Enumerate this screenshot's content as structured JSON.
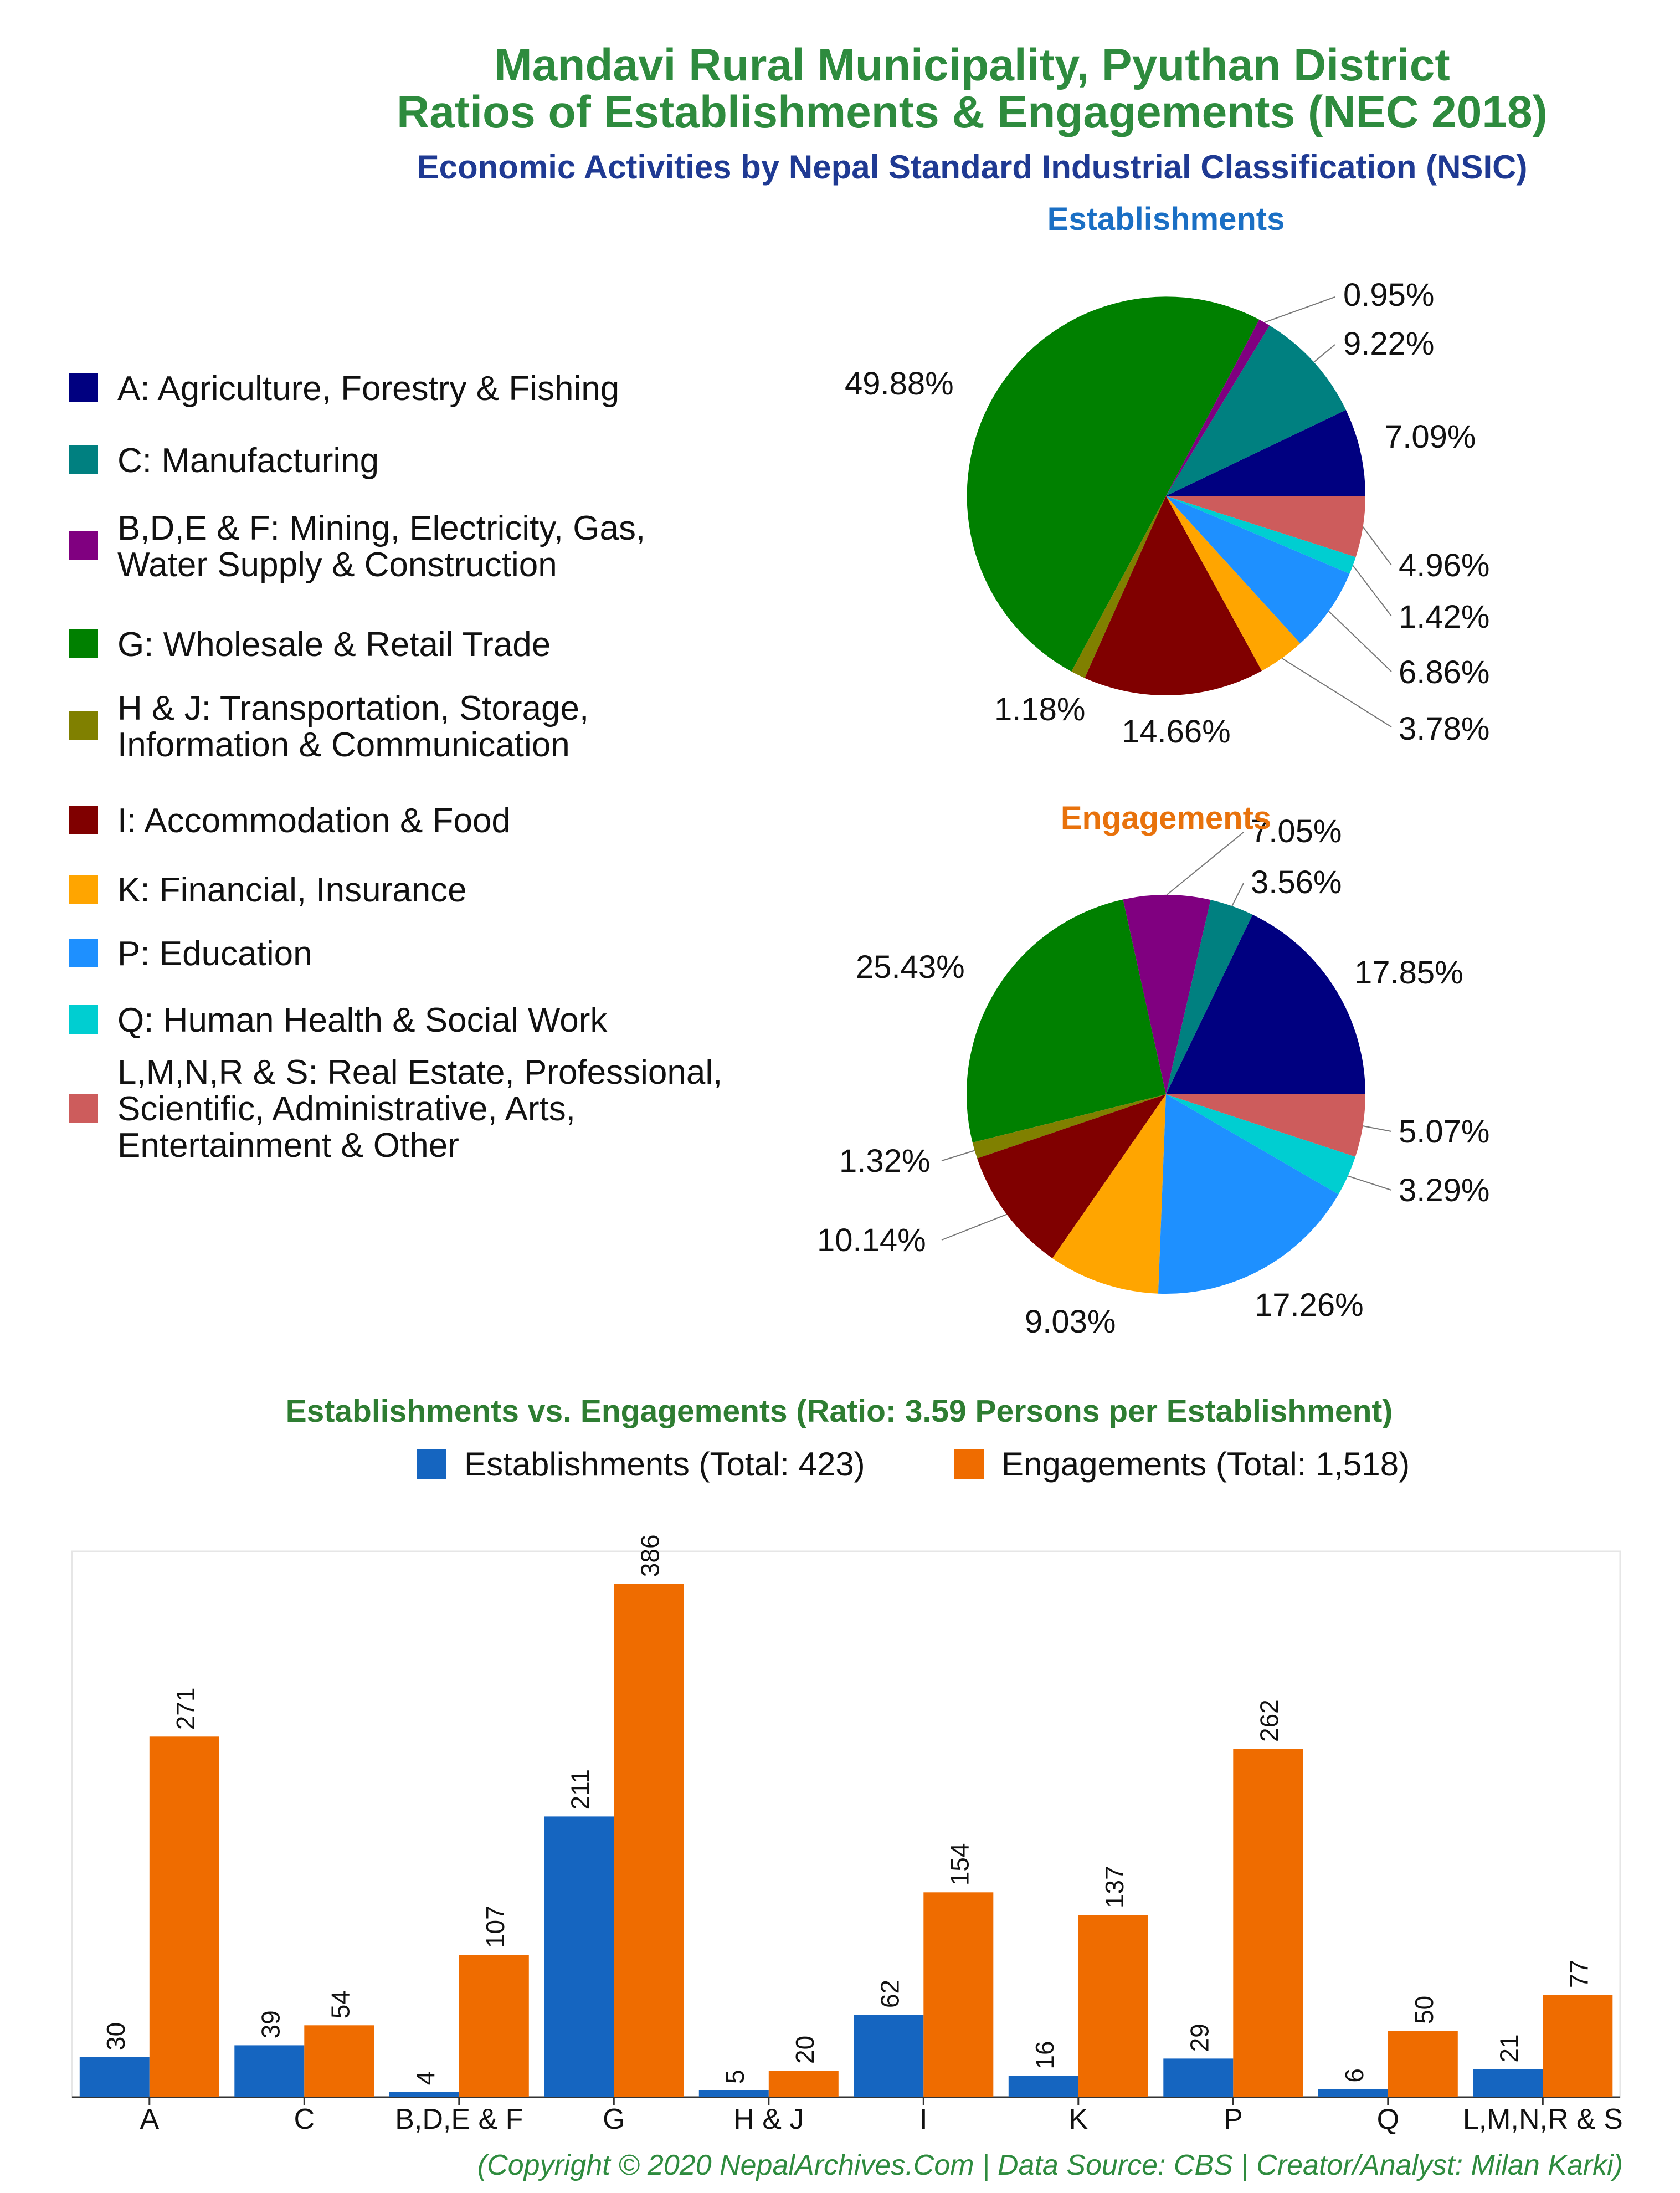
{
  "titles": {
    "line1": "Mandavi Rural Municipality, Pyuthan District",
    "line2": "Ratios of Establishments & Engagements (NEC 2018)",
    "subtitle": "Economic Activities by Nepal Standard Industrial Classification (NSIC)"
  },
  "colors": {
    "title": "#2e8b3e",
    "subtitle": "#1f3a93",
    "est_title": "#1a6fc4",
    "eng_title": "#e8720c",
    "bar_est": "#1565c0",
    "bar_eng": "#ef6c00",
    "bar_title": "#2e7d32",
    "copyright": "#2e8b3e"
  },
  "legend": [
    {
      "label": [
        "A: Agriculture, Forestry & Fishing"
      ],
      "color": "#000080"
    },
    {
      "label": [
        "C: Manufacturing"
      ],
      "color": "#008080"
    },
    {
      "label": [
        "B,D,E & F: Mining, Electricity, Gas,",
        "Water Supply & Construction"
      ],
      "color": "#800080"
    },
    {
      "label": [
        "G: Wholesale & Retail Trade"
      ],
      "color": "#008000"
    },
    {
      "label": [
        "H & J: Transportation, Storage,",
        "Information & Communication"
      ],
      "color": "#808000"
    },
    {
      "label": [
        "I: Accommodation & Food"
      ],
      "color": "#800000"
    },
    {
      "label": [
        "K: Financial, Insurance"
      ],
      "color": "#ffa500"
    },
    {
      "label": [
        "P: Education"
      ],
      "color": "#1e90ff"
    },
    {
      "label": [
        "Q: Human Health & Social Work"
      ],
      "color": "#00ced1"
    },
    {
      "label": [
        "L,M,N,R & S: Real Estate, Professional,",
        "Scientific, Administrative, Arts,",
        "Entertainment & Other"
      ],
      "color": "#cd5c5c"
    }
  ],
  "chart_data": [
    {
      "type": "pie",
      "title": "Establishments",
      "slices": [
        {
          "name": "A",
          "value": 7.09,
          "label": "7.09%",
          "color": "#000080"
        },
        {
          "name": "C",
          "value": 9.22,
          "label": "9.22%",
          "color": "#008080"
        },
        {
          "name": "B,D,E & F",
          "value": 0.95,
          "label": "0.95%",
          "color": "#800080"
        },
        {
          "name": "G",
          "value": 49.88,
          "label": "49.88%",
          "color": "#008000"
        },
        {
          "name": "H & J",
          "value": 1.18,
          "label": "1.18%",
          "color": "#808000"
        },
        {
          "name": "I",
          "value": 14.66,
          "label": "14.66%",
          "color": "#800000"
        },
        {
          "name": "K",
          "value": 3.78,
          "label": "3.78%",
          "color": "#ffa500"
        },
        {
          "name": "P",
          "value": 6.86,
          "label": "6.86%",
          "color": "#1e90ff"
        },
        {
          "name": "Q",
          "value": 1.42,
          "label": "1.42%",
          "color": "#00ced1"
        },
        {
          "name": "L,M,N,R & S",
          "value": 4.96,
          "label": "4.96%",
          "color": "#cd5c5c"
        }
      ]
    },
    {
      "type": "pie",
      "title": "Engagements",
      "slices": [
        {
          "name": "A",
          "value": 17.85,
          "label": "17.85%",
          "color": "#000080"
        },
        {
          "name": "C",
          "value": 3.56,
          "label": "3.56%",
          "color": "#008080"
        },
        {
          "name": "B,D,E & F",
          "value": 7.05,
          "label": "7.05%",
          "color": "#800080"
        },
        {
          "name": "G",
          "value": 25.43,
          "label": "25.43%",
          "color": "#008000"
        },
        {
          "name": "H & J",
          "value": 1.32,
          "label": "1.32%",
          "color": "#808000"
        },
        {
          "name": "I",
          "value": 10.14,
          "label": "10.14%",
          "color": "#800000"
        },
        {
          "name": "K",
          "value": 9.03,
          "label": "9.03%",
          "color": "#ffa500"
        },
        {
          "name": "P",
          "value": 17.26,
          "label": "17.26%",
          "color": "#1e90ff"
        },
        {
          "name": "Q",
          "value": 3.29,
          "label": "3.29%",
          "color": "#00ced1"
        },
        {
          "name": "L,M,N,R & S",
          "value": 5.07,
          "label": "5.07%",
          "color": "#cd5c5c"
        }
      ]
    },
    {
      "type": "bar",
      "title": "Establishments vs. Engagements (Ratio: 3.59 Persons per Establishment)",
      "categories": [
        "A",
        "C",
        "B,D,E & F",
        "G",
        "H & J",
        "I",
        "K",
        "P",
        "Q",
        "L,M,N,R & S"
      ],
      "series": [
        {
          "name": "Establishments (Total: 423)",
          "values": [
            30,
            39,
            4,
            211,
            5,
            62,
            16,
            29,
            6,
            21
          ]
        },
        {
          "name": "Engagements (Total: 1,518)",
          "values": [
            271,
            54,
            107,
            386,
            20,
            154,
            137,
            262,
            50,
            77
          ]
        }
      ],
      "ylim": [
        0,
        400
      ],
      "grid": false
    }
  ],
  "copyright": "(Copyright © 2020 NepalArchives.Com | Data Source: CBS | Creator/Analyst: Milan Karki)"
}
